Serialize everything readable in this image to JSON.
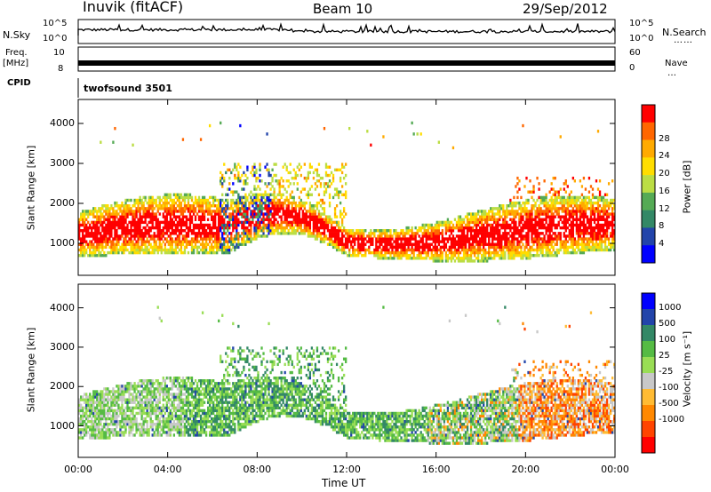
{
  "header": {
    "station": "Inuvik (fitACF)",
    "beam": "Beam 10",
    "date": "29/Sep/2012"
  },
  "aux_panels": {
    "nsky_label": "N.Sky",
    "nsky_ticks": [
      "10^5",
      "10^0"
    ],
    "nsearch_label": "N.Search",
    "nsearch_ticks": [
      "10^5",
      "10^0"
    ],
    "freq_label": "Freq.",
    "freq_unit": "[MHz]",
    "freq_ticks": [
      "10",
      "8"
    ],
    "nave_label": "Nave",
    "nave_ticks": [
      "60",
      "0"
    ],
    "cpid_label": "CPID",
    "cpid_value": "twofsound 3501"
  },
  "colors": {
    "power": [
      "#0000ff",
      "#2244aa",
      "#338866",
      "#55aa55",
      "#bbdd44",
      "#ffdd00",
      "#ffaa00",
      "#ff6600",
      "#ff0000"
    ],
    "velocity": [
      "#ff0000",
      "#ff4400",
      "#ff8800",
      "#ffbb33",
      "#c8c8c8",
      "#99dd55",
      "#55bb44",
      "#338866",
      "#2244aa",
      "#0000ff"
    ]
  },
  "chart_data": [
    {
      "type": "heatmap",
      "name": "power-panel",
      "xlabel": "",
      "ylabel": "Slant Range [km]",
      "x_ticks": [
        "00:00",
        "04:00",
        "08:00",
        "12:00",
        "16:00",
        "20:00",
        "00:00"
      ],
      "y_ticks": [
        "1000",
        "2000",
        "3000",
        "4000"
      ],
      "ylim": [
        200,
        4600
      ],
      "colorbar_label": "Power [dB]",
      "colorbar_ticks": [
        "4",
        "8",
        "12",
        "16",
        "20",
        "24",
        "28"
      ],
      "clim": [
        0,
        30
      ]
    },
    {
      "type": "heatmap",
      "name": "velocity-panel",
      "xlabel": "Time UT",
      "ylabel": "Slant Range [km]",
      "x_ticks": [
        "00:00",
        "04:00",
        "08:00",
        "12:00",
        "16:00",
        "20:00",
        "00:00"
      ],
      "y_ticks": [
        "1000",
        "2000",
        "3000",
        "4000"
      ],
      "ylim": [
        200,
        4600
      ],
      "colorbar_label": "Velocity [m s⁻¹]",
      "colorbar_ticks": [
        "1000",
        "500",
        "100",
        "25",
        "-25",
        "-100",
        "-500",
        "-1000"
      ]
    }
  ]
}
